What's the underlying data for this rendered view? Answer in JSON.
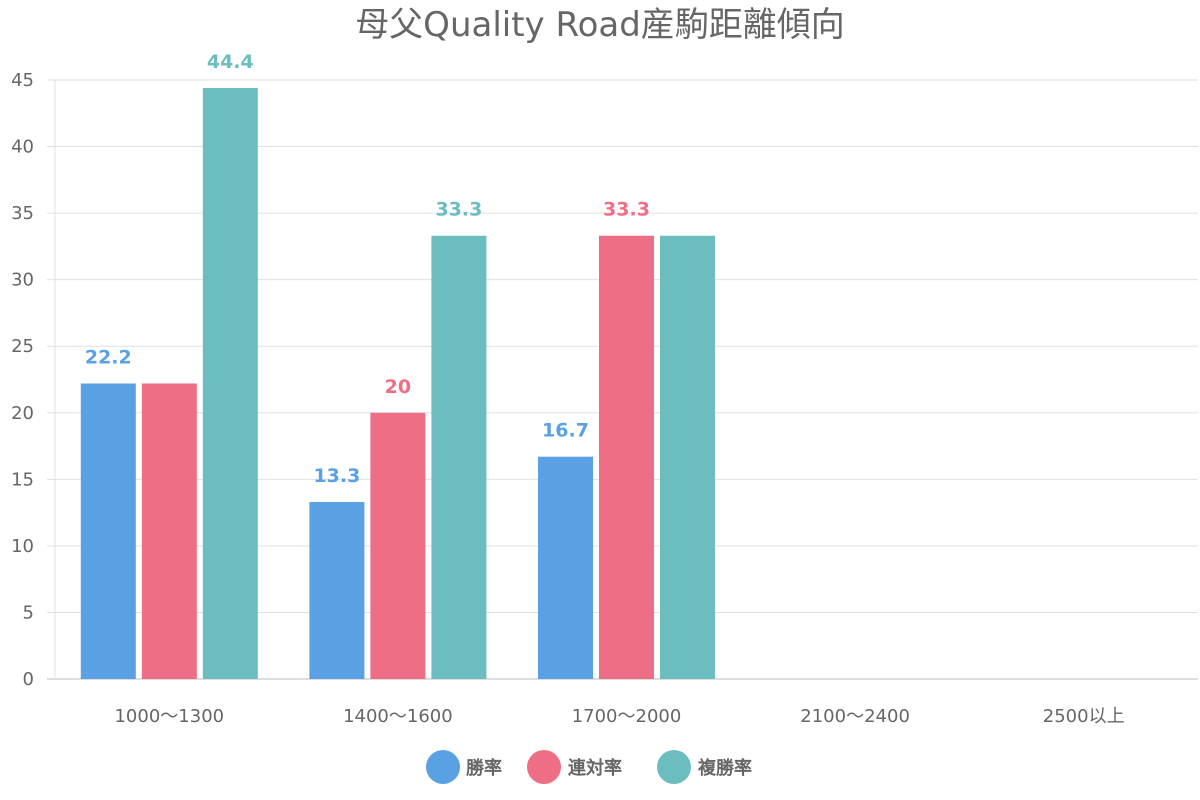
{
  "chart_data": {
    "type": "bar",
    "title": "母父Quality Road産駒距離傾向",
    "categories": [
      "1000〜1300",
      "1400〜1600",
      "1700〜2000",
      "2100〜2400",
      "2500以上"
    ],
    "series": [
      {
        "name": "勝率",
        "color": "#5aa1e3",
        "values": [
          22.2,
          13.3,
          16.7,
          null,
          null
        ],
        "label_color": "#5aa1e3"
      },
      {
        "name": "連対率",
        "color": "#ed6e85",
        "values": [
          22.2,
          20,
          33.3,
          null,
          null
        ],
        "label_color": "#ed6e85"
      },
      {
        "name": "複勝率",
        "color": "#6cbdbf",
        "values": [
          44.4,
          33.3,
          33.3,
          null,
          null
        ],
        "label_color": "#6cbdbf"
      }
    ],
    "data_labels": [
      {
        "series": 0,
        "category": 0,
        "text": "22.2"
      },
      {
        "series": 2,
        "category": 0,
        "text": "44.4"
      },
      {
        "series": 0,
        "category": 1,
        "text": "13.3"
      },
      {
        "series": 1,
        "category": 1,
        "text": "20"
      },
      {
        "series": 2,
        "category": 1,
        "text": "33.3"
      },
      {
        "series": 0,
        "category": 2,
        "text": "16.7"
      },
      {
        "series": 1,
        "category": 2,
        "text": "33.3"
      }
    ],
    "ylim": [
      0,
      45
    ],
    "yticks": [
      "0",
      "5",
      "10",
      "15",
      "20",
      "25",
      "30",
      "35",
      "40",
      "45"
    ],
    "grid": true,
    "legend_position": "bottom"
  }
}
